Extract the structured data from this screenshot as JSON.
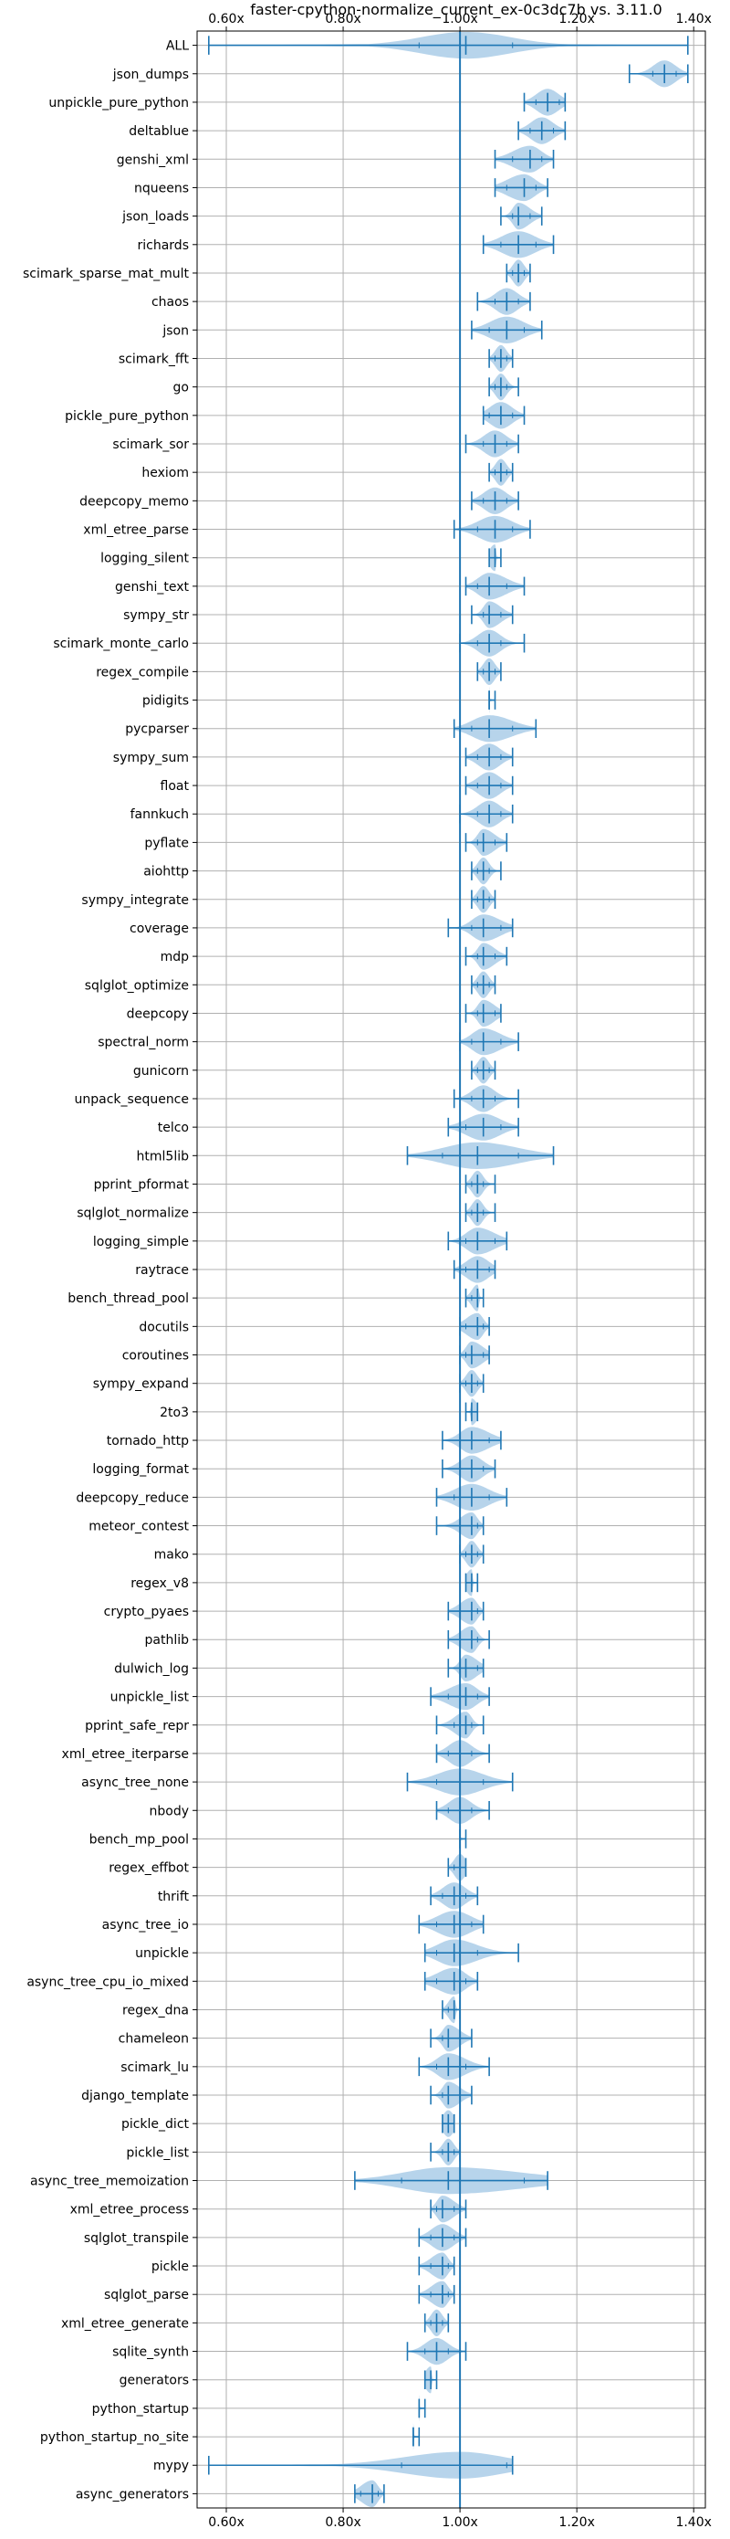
{
  "chart_data": {
    "type": "violin",
    "orientation": "horizontal",
    "title": "faster-cpython-normalize_current_ex-0c3dc7b vs. 3.11.0",
    "xlabel": "",
    "ylabel": "",
    "xlim": [
      0.55,
      1.42
    ],
    "xticks": [
      0.6,
      0.8,
      1.0,
      1.2,
      1.4
    ],
    "xtick_labels": [
      "0.60x",
      "0.80x",
      "1.00x",
      "1.20x",
      "1.40x"
    ],
    "x_tick_position": "top-and-bottom",
    "grid": true,
    "reference_line": 1.0,
    "colors": {
      "violin": "#9fc5e4",
      "line": "#1f77b4",
      "grid": "#b0b0b0"
    },
    "benchmarks": [
      {
        "name": "ALL",
        "min": 0.57,
        "q1": 0.93,
        "median": 1.01,
        "q3": 1.09,
        "max": 1.39
      },
      {
        "name": "json_dumps",
        "min": 1.29,
        "q1": 1.33,
        "median": 1.35,
        "q3": 1.37,
        "max": 1.39
      },
      {
        "name": "unpickle_pure_python",
        "min": 1.11,
        "q1": 1.13,
        "median": 1.15,
        "q3": 1.17,
        "max": 1.18
      },
      {
        "name": "deltablue",
        "min": 1.1,
        "q1": 1.12,
        "median": 1.14,
        "q3": 1.16,
        "max": 1.18
      },
      {
        "name": "genshi_xml",
        "min": 1.06,
        "q1": 1.09,
        "median": 1.12,
        "q3": 1.14,
        "max": 1.16
      },
      {
        "name": "nqueens",
        "min": 1.06,
        "q1": 1.08,
        "median": 1.11,
        "q3": 1.13,
        "max": 1.15
      },
      {
        "name": "json_loads",
        "min": 1.07,
        "q1": 1.09,
        "median": 1.1,
        "q3": 1.12,
        "max": 1.14
      },
      {
        "name": "richards",
        "min": 1.04,
        "q1": 1.07,
        "median": 1.1,
        "q3": 1.13,
        "max": 1.16
      },
      {
        "name": "scimark_sparse_mat_mult",
        "min": 1.08,
        "q1": 1.09,
        "median": 1.1,
        "q3": 1.11,
        "max": 1.12
      },
      {
        "name": "chaos",
        "min": 1.03,
        "q1": 1.06,
        "median": 1.08,
        "q3": 1.1,
        "max": 1.12
      },
      {
        "name": "json",
        "min": 1.02,
        "q1": 1.05,
        "median": 1.08,
        "q3": 1.11,
        "max": 1.14
      },
      {
        "name": "scimark_fft",
        "min": 1.05,
        "q1": 1.06,
        "median": 1.07,
        "q3": 1.08,
        "max": 1.09
      },
      {
        "name": "go",
        "min": 1.05,
        "q1": 1.06,
        "median": 1.07,
        "q3": 1.08,
        "max": 1.1
      },
      {
        "name": "pickle_pure_python",
        "min": 1.04,
        "q1": 1.05,
        "median": 1.07,
        "q3": 1.09,
        "max": 1.11
      },
      {
        "name": "scimark_sor",
        "min": 1.01,
        "q1": 1.04,
        "median": 1.06,
        "q3": 1.08,
        "max": 1.1
      },
      {
        "name": "hexiom",
        "min": 1.05,
        "q1": 1.06,
        "median": 1.07,
        "q3": 1.08,
        "max": 1.09
      },
      {
        "name": "deepcopy_memo",
        "min": 1.02,
        "q1": 1.04,
        "median": 1.06,
        "q3": 1.08,
        "max": 1.1
      },
      {
        "name": "xml_etree_parse",
        "min": 0.99,
        "q1": 1.03,
        "median": 1.06,
        "q3": 1.09,
        "max": 1.12
      },
      {
        "name": "logging_silent",
        "min": 1.05,
        "q1": 1.05,
        "median": 1.06,
        "q3": 1.06,
        "max": 1.07
      },
      {
        "name": "genshi_text",
        "min": 1.01,
        "q1": 1.03,
        "median": 1.05,
        "q3": 1.08,
        "max": 1.11
      },
      {
        "name": "sympy_str",
        "min": 1.02,
        "q1": 1.04,
        "median": 1.05,
        "q3": 1.07,
        "max": 1.09
      },
      {
        "name": "scimark_monte_carlo",
        "min": 1.0,
        "q1": 1.03,
        "median": 1.05,
        "q3": 1.07,
        "max": 1.11
      },
      {
        "name": "regex_compile",
        "min": 1.03,
        "q1": 1.04,
        "median": 1.05,
        "q3": 1.06,
        "max": 1.07
      },
      {
        "name": "pidigits",
        "min": 1.05,
        "q1": 1.05,
        "median": 1.05,
        "q3": 1.05,
        "max": 1.06
      },
      {
        "name": "pycparser",
        "min": 0.99,
        "q1": 1.02,
        "median": 1.05,
        "q3": 1.09,
        "max": 1.13
      },
      {
        "name": "sympy_sum",
        "min": 1.01,
        "q1": 1.03,
        "median": 1.05,
        "q3": 1.07,
        "max": 1.09
      },
      {
        "name": "float",
        "min": 1.01,
        "q1": 1.03,
        "median": 1.05,
        "q3": 1.07,
        "max": 1.09
      },
      {
        "name": "fannkuch",
        "min": 1.0,
        "q1": 1.03,
        "median": 1.05,
        "q3": 1.07,
        "max": 1.09
      },
      {
        "name": "pyflate",
        "min": 1.01,
        "q1": 1.03,
        "median": 1.04,
        "q3": 1.06,
        "max": 1.08
      },
      {
        "name": "aiohttp",
        "min": 1.02,
        "q1": 1.03,
        "median": 1.04,
        "q3": 1.05,
        "max": 1.07
      },
      {
        "name": "sympy_integrate",
        "min": 1.02,
        "q1": 1.03,
        "median": 1.04,
        "q3": 1.05,
        "max": 1.06
      },
      {
        "name": "coverage",
        "min": 0.98,
        "q1": 1.02,
        "median": 1.04,
        "q3": 1.07,
        "max": 1.09
      },
      {
        "name": "mdp",
        "min": 1.01,
        "q1": 1.03,
        "median": 1.04,
        "q3": 1.06,
        "max": 1.08
      },
      {
        "name": "sqlglot_optimize",
        "min": 1.02,
        "q1": 1.03,
        "median": 1.04,
        "q3": 1.05,
        "max": 1.06
      },
      {
        "name": "deepcopy",
        "min": 1.01,
        "q1": 1.03,
        "median": 1.04,
        "q3": 1.06,
        "max": 1.07
      },
      {
        "name": "spectral_norm",
        "min": 1.0,
        "q1": 1.02,
        "median": 1.04,
        "q3": 1.07,
        "max": 1.1
      },
      {
        "name": "gunicorn",
        "min": 1.02,
        "q1": 1.03,
        "median": 1.04,
        "q3": 1.05,
        "max": 1.06
      },
      {
        "name": "unpack_sequence",
        "min": 0.99,
        "q1": 1.02,
        "median": 1.04,
        "q3": 1.06,
        "max": 1.1
      },
      {
        "name": "telco",
        "min": 0.98,
        "q1": 1.01,
        "median": 1.04,
        "q3": 1.07,
        "max": 1.1
      },
      {
        "name": "html5lib",
        "min": 0.91,
        "q1": 0.97,
        "median": 1.03,
        "q3": 1.1,
        "max": 1.16
      },
      {
        "name": "pprint_pformat",
        "min": 1.01,
        "q1": 1.02,
        "median": 1.03,
        "q3": 1.04,
        "max": 1.06
      },
      {
        "name": "sqlglot_normalize",
        "min": 1.01,
        "q1": 1.02,
        "median": 1.03,
        "q3": 1.04,
        "max": 1.06
      },
      {
        "name": "logging_simple",
        "min": 0.98,
        "q1": 1.01,
        "median": 1.03,
        "q3": 1.06,
        "max": 1.08
      },
      {
        "name": "raytrace",
        "min": 0.99,
        "q1": 1.01,
        "median": 1.03,
        "q3": 1.05,
        "max": 1.06
      },
      {
        "name": "bench_thread_pool",
        "min": 1.01,
        "q1": 1.02,
        "median": 1.03,
        "q3": 1.03,
        "max": 1.04
      },
      {
        "name": "docutils",
        "min": 1.0,
        "q1": 1.01,
        "median": 1.03,
        "q3": 1.04,
        "max": 1.05
      },
      {
        "name": "coroutines",
        "min": 1.0,
        "q1": 1.01,
        "median": 1.02,
        "q3": 1.04,
        "max": 1.05
      },
      {
        "name": "sympy_expand",
        "min": 1.0,
        "q1": 1.01,
        "median": 1.02,
        "q3": 1.03,
        "max": 1.04
      },
      {
        "name": "2to3",
        "min": 1.01,
        "q1": 1.02,
        "median": 1.02,
        "q3": 1.03,
        "max": 1.03
      },
      {
        "name": "tornado_http",
        "min": 0.97,
        "q1": 1.0,
        "median": 1.02,
        "q3": 1.05,
        "max": 1.07
      },
      {
        "name": "logging_format",
        "min": 0.97,
        "q1": 1.0,
        "median": 1.02,
        "q3": 1.04,
        "max": 1.06
      },
      {
        "name": "deepcopy_reduce",
        "min": 0.96,
        "q1": 0.99,
        "median": 1.02,
        "q3": 1.05,
        "max": 1.08
      },
      {
        "name": "meteor_contest",
        "min": 0.96,
        "q1": 1.0,
        "median": 1.02,
        "q3": 1.03,
        "max": 1.04
      },
      {
        "name": "mako",
        "min": 1.0,
        "q1": 1.01,
        "median": 1.02,
        "q3": 1.03,
        "max": 1.04
      },
      {
        "name": "regex_v8",
        "min": 1.01,
        "q1": 1.01,
        "median": 1.02,
        "q3": 1.02,
        "max": 1.03
      },
      {
        "name": "crypto_pyaes",
        "min": 0.98,
        "q1": 1.0,
        "median": 1.02,
        "q3": 1.03,
        "max": 1.04
      },
      {
        "name": "pathlib",
        "min": 0.98,
        "q1": 1.0,
        "median": 1.02,
        "q3": 1.03,
        "max": 1.05
      },
      {
        "name": "dulwich_log",
        "min": 0.98,
        "q1": 1.0,
        "median": 1.01,
        "q3": 1.03,
        "max": 1.04
      },
      {
        "name": "unpickle_list",
        "min": 0.95,
        "q1": 0.98,
        "median": 1.01,
        "q3": 1.03,
        "max": 1.05
      },
      {
        "name": "pprint_safe_repr",
        "min": 0.96,
        "q1": 0.99,
        "median": 1.01,
        "q3": 1.02,
        "max": 1.04
      },
      {
        "name": "xml_etree_iterparse",
        "min": 0.96,
        "q1": 0.98,
        "median": 1.0,
        "q3": 1.02,
        "max": 1.05
      },
      {
        "name": "async_tree_none",
        "min": 0.91,
        "q1": 0.96,
        "median": 1.0,
        "q3": 1.04,
        "max": 1.09
      },
      {
        "name": "nbody",
        "min": 0.96,
        "q1": 0.98,
        "median": 1.0,
        "q3": 1.02,
        "max": 1.05
      },
      {
        "name": "bench_mp_pool",
        "min": 1.0,
        "q1": 1.0,
        "median": 1.0,
        "q3": 1.0,
        "max": 1.01
      },
      {
        "name": "regex_effbot",
        "min": 0.98,
        "q1": 0.99,
        "median": 1.0,
        "q3": 1.01,
        "max": 1.01
      },
      {
        "name": "thrift",
        "min": 0.95,
        "q1": 0.97,
        "median": 0.99,
        "q3": 1.01,
        "max": 1.03
      },
      {
        "name": "async_tree_io",
        "min": 0.93,
        "q1": 0.96,
        "median": 0.99,
        "q3": 1.02,
        "max": 1.04
      },
      {
        "name": "unpickle",
        "min": 0.94,
        "q1": 0.96,
        "median": 0.99,
        "q3": 1.03,
        "max": 1.1
      },
      {
        "name": "async_tree_cpu_io_mixed",
        "min": 0.94,
        "q1": 0.96,
        "median": 0.99,
        "q3": 1.01,
        "max": 1.03
      },
      {
        "name": "regex_dna",
        "min": 0.97,
        "q1": 0.98,
        "median": 0.99,
        "q3": 0.99,
        "max": 1.0
      },
      {
        "name": "chameleon",
        "min": 0.95,
        "q1": 0.97,
        "median": 0.98,
        "q3": 1.0,
        "max": 1.02
      },
      {
        "name": "scimark_lu",
        "min": 0.93,
        "q1": 0.96,
        "median": 0.98,
        "q3": 1.01,
        "max": 1.05
      },
      {
        "name": "django_template",
        "min": 0.95,
        "q1": 0.97,
        "median": 0.98,
        "q3": 1.0,
        "max": 1.02
      },
      {
        "name": "pickle_dict",
        "min": 0.97,
        "q1": 0.97,
        "median": 0.98,
        "q3": 0.99,
        "max": 0.99
      },
      {
        "name": "pickle_list",
        "min": 0.95,
        "q1": 0.97,
        "median": 0.98,
        "q3": 0.99,
        "max": 1.0
      },
      {
        "name": "async_tree_memoization",
        "min": 0.82,
        "q1": 0.9,
        "median": 0.98,
        "q3": 1.11,
        "max": 1.15
      },
      {
        "name": "xml_etree_process",
        "min": 0.95,
        "q1": 0.96,
        "median": 0.97,
        "q3": 0.99,
        "max": 1.01
      },
      {
        "name": "sqlglot_transpile",
        "min": 0.93,
        "q1": 0.95,
        "median": 0.97,
        "q3": 0.99,
        "max": 1.01
      },
      {
        "name": "pickle",
        "min": 0.93,
        "q1": 0.95,
        "median": 0.97,
        "q3": 0.98,
        "max": 0.99
      },
      {
        "name": "sqlglot_parse",
        "min": 0.93,
        "q1": 0.95,
        "median": 0.97,
        "q3": 0.98,
        "max": 0.99
      },
      {
        "name": "xml_etree_generate",
        "min": 0.94,
        "q1": 0.95,
        "median": 0.96,
        "q3": 0.97,
        "max": 0.98
      },
      {
        "name": "sqlite_synth",
        "min": 0.91,
        "q1": 0.94,
        "median": 0.96,
        "q3": 0.98,
        "max": 1.01
      },
      {
        "name": "generators",
        "min": 0.94,
        "q1": 0.94,
        "median": 0.95,
        "q3": 0.95,
        "max": 0.96
      },
      {
        "name": "python_startup",
        "min": 0.93,
        "q1": 0.93,
        "median": 0.93,
        "q3": 0.93,
        "max": 0.94
      },
      {
        "name": "python_startup_no_site",
        "min": 0.92,
        "q1": 0.92,
        "median": 0.92,
        "q3": 0.92,
        "max": 0.93
      },
      {
        "name": "mypy",
        "min": 0.57,
        "q1": 0.9,
        "median": 1.0,
        "q3": 1.08,
        "max": 1.09
      },
      {
        "name": "async_generators",
        "min": 0.82,
        "q1": 0.83,
        "median": 0.85,
        "q3": 0.86,
        "max": 0.87
      }
    ]
  }
}
